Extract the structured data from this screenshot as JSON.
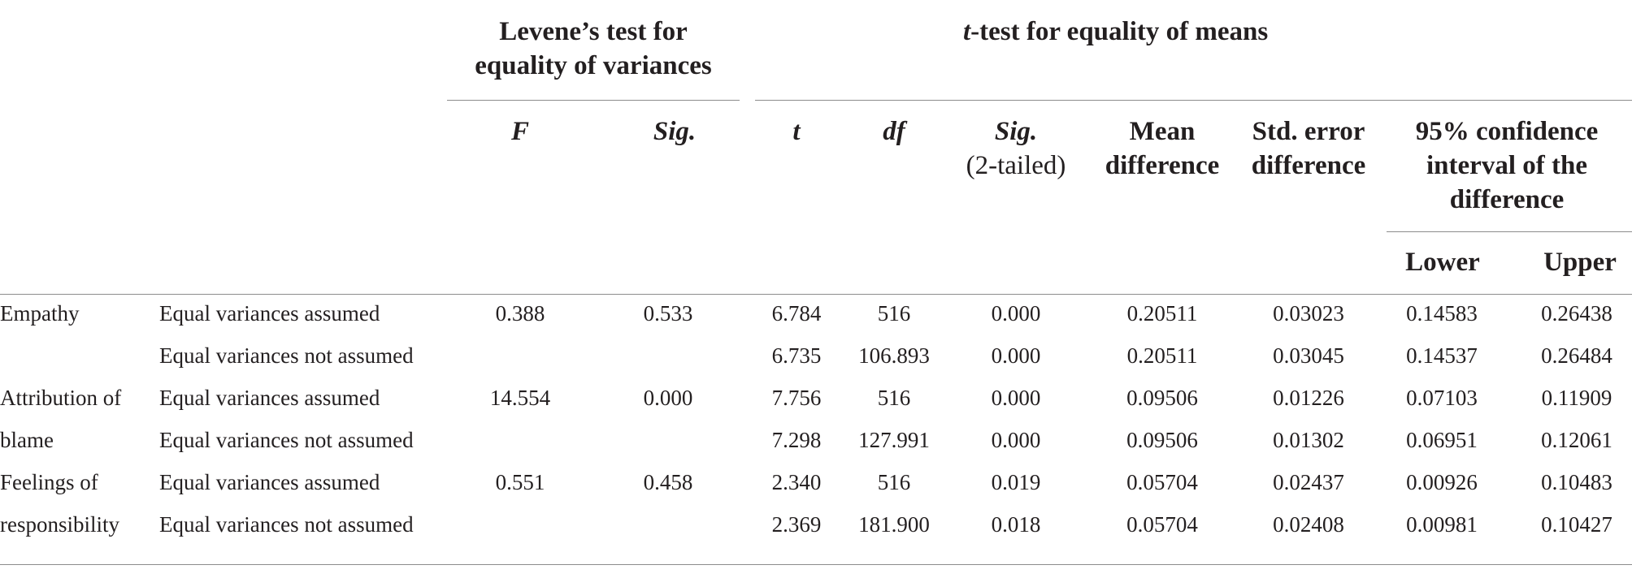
{
  "table": {
    "group_headers": {
      "levene_line1": "Levene’s test for",
      "levene_line2": "equality of variances",
      "ttest_t": "t",
      "ttest_rest": "-test for equality of means"
    },
    "columns": {
      "f": "F",
      "sig": "Sig.",
      "t": "t",
      "df": "df",
      "sig2_line1": "Sig.",
      "sig2_line2": "(2-tailed)",
      "mean_diff_line1": "Mean",
      "mean_diff_line2": "difference",
      "std_err_line1": "Std. error",
      "std_err_line2": "difference",
      "ci_line1": "95% confidence",
      "ci_line2": "interval of the",
      "ci_line3": "difference",
      "lower": "Lower",
      "upper": "Upper"
    },
    "rows": [
      {
        "variable": "Empathy",
        "assumption": "Equal variances assumed",
        "f": "0.388",
        "sig": "0.533",
        "t": "6.784",
        "df": "516",
        "sig2": "0.000",
        "mean_diff": "0.20511",
        "std_err": "0.03023",
        "lower": "0.14583",
        "upper": "0.26438"
      },
      {
        "variable": "",
        "assumption": "Equal variances not assumed",
        "f": "",
        "sig": "",
        "t": "6.735",
        "df": "106.893",
        "sig2": "0.000",
        "mean_diff": "0.20511",
        "std_err": "0.03045",
        "lower": "0.14537",
        "upper": "0.26484"
      },
      {
        "variable": "Attribution of",
        "assumption": "Equal variances assumed",
        "f": "14.554",
        "sig": "0.000",
        "t": "7.756",
        "df": "516",
        "sig2": "0.000",
        "mean_diff": "0.09506",
        "std_err": "0.01226",
        "lower": "0.07103",
        "upper": "0.11909"
      },
      {
        "variable": "blame",
        "assumption": "Equal variances not assumed",
        "f": "",
        "sig": "",
        "t": "7.298",
        "df": "127.991",
        "sig2": "0.000",
        "mean_diff": "0.09506",
        "std_err": "0.01302",
        "lower": "0.06951",
        "upper": "0.12061"
      },
      {
        "variable": "Feelings of",
        "assumption": "Equal variances assumed",
        "f": "0.551",
        "sig": "0.458",
        "t": "2.340",
        "df": "516",
        "sig2": "0.019",
        "mean_diff": "0.05704",
        "std_err": "0.02437",
        "lower": "0.00926",
        "upper": "0.10483"
      },
      {
        "variable": "responsibility",
        "assumption": "Equal variances not assumed",
        "f": "",
        "sig": "",
        "t": "2.369",
        "df": "181.900",
        "sig2": "0.018",
        "mean_diff": "0.05704",
        "std_err": "0.02408",
        "lower": "0.00981",
        "upper": "0.10427"
      }
    ]
  },
  "colors": {
    "text": "#231f20",
    "rule": "#8c8c8c"
  }
}
